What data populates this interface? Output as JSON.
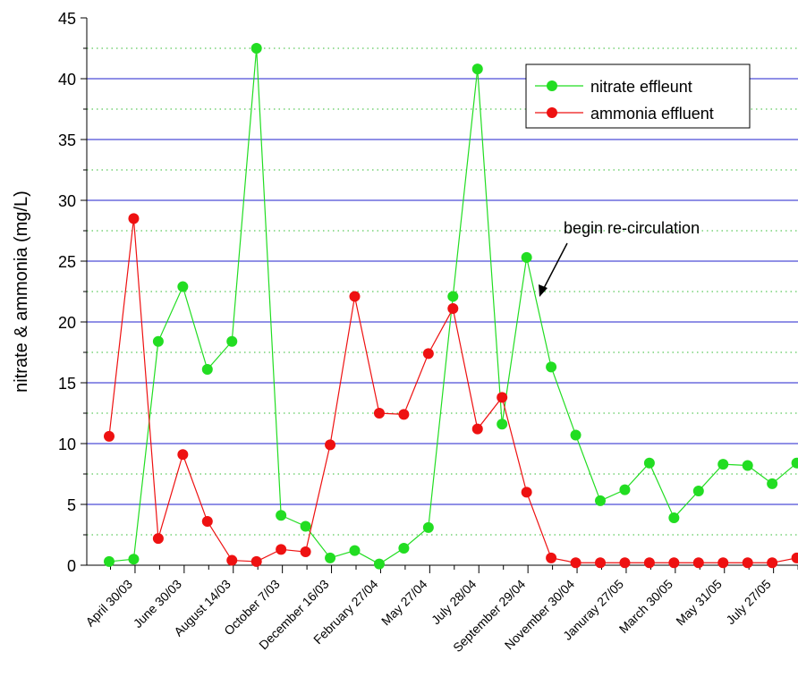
{
  "chart_data": {
    "type": "line",
    "y_label": "nitrate & ammonia (mg/L)",
    "annotation": "begin re-circulation",
    "categories": [
      null,
      "April 30/03",
      null,
      "June 30/03",
      null,
      "August 14/03",
      null,
      "October 7/03",
      null,
      "December 16/03",
      null,
      "February 27/04",
      null,
      "May 27/04",
      null,
      "July 28/04",
      null,
      "September 29/04",
      null,
      "November 30/04",
      null,
      "Januray 27/05",
      null,
      "March 30/05",
      null,
      "May 31/05",
      null,
      "July 27/05",
      null
    ],
    "series": [
      {
        "name": "nitrate effleunt",
        "color": "#22dd22",
        "values": [
          0.3,
          0.5,
          18.4,
          22.9,
          16.1,
          18.4,
          42.5,
          4.1,
          3.2,
          0.6,
          1.2,
          0.1,
          1.4,
          3.1,
          22.1,
          40.8,
          11.6,
          25.3,
          16.3,
          10.7,
          5.3,
          6.2,
          8.4,
          3.9,
          6.1,
          8.3,
          8.2,
          6.7,
          8.4
        ]
      },
      {
        "name": "ammonia effluent",
        "color": "#ee1111",
        "values": [
          10.6,
          28.5,
          2.2,
          9.1,
          3.6,
          0.4,
          0.3,
          1.3,
          1.1,
          9.9,
          22.1,
          12.5,
          12.4,
          17.4,
          21.1,
          11.2,
          13.8,
          6.0,
          0.6,
          0.2,
          0.2,
          0.2,
          0.2,
          0.2,
          0.2,
          0.2,
          0.2,
          0.2,
          0.6
        ]
      }
    ],
    "ylim": [
      0,
      45
    ],
    "yticks": [
      0,
      5,
      10,
      15,
      20,
      25,
      30,
      35,
      40,
      45
    ],
    "minor_grid": [
      2.5,
      7.5,
      12.5,
      17.5,
      22.5,
      27.5,
      32.5,
      37.5,
      42.5
    ],
    "grid": true
  }
}
